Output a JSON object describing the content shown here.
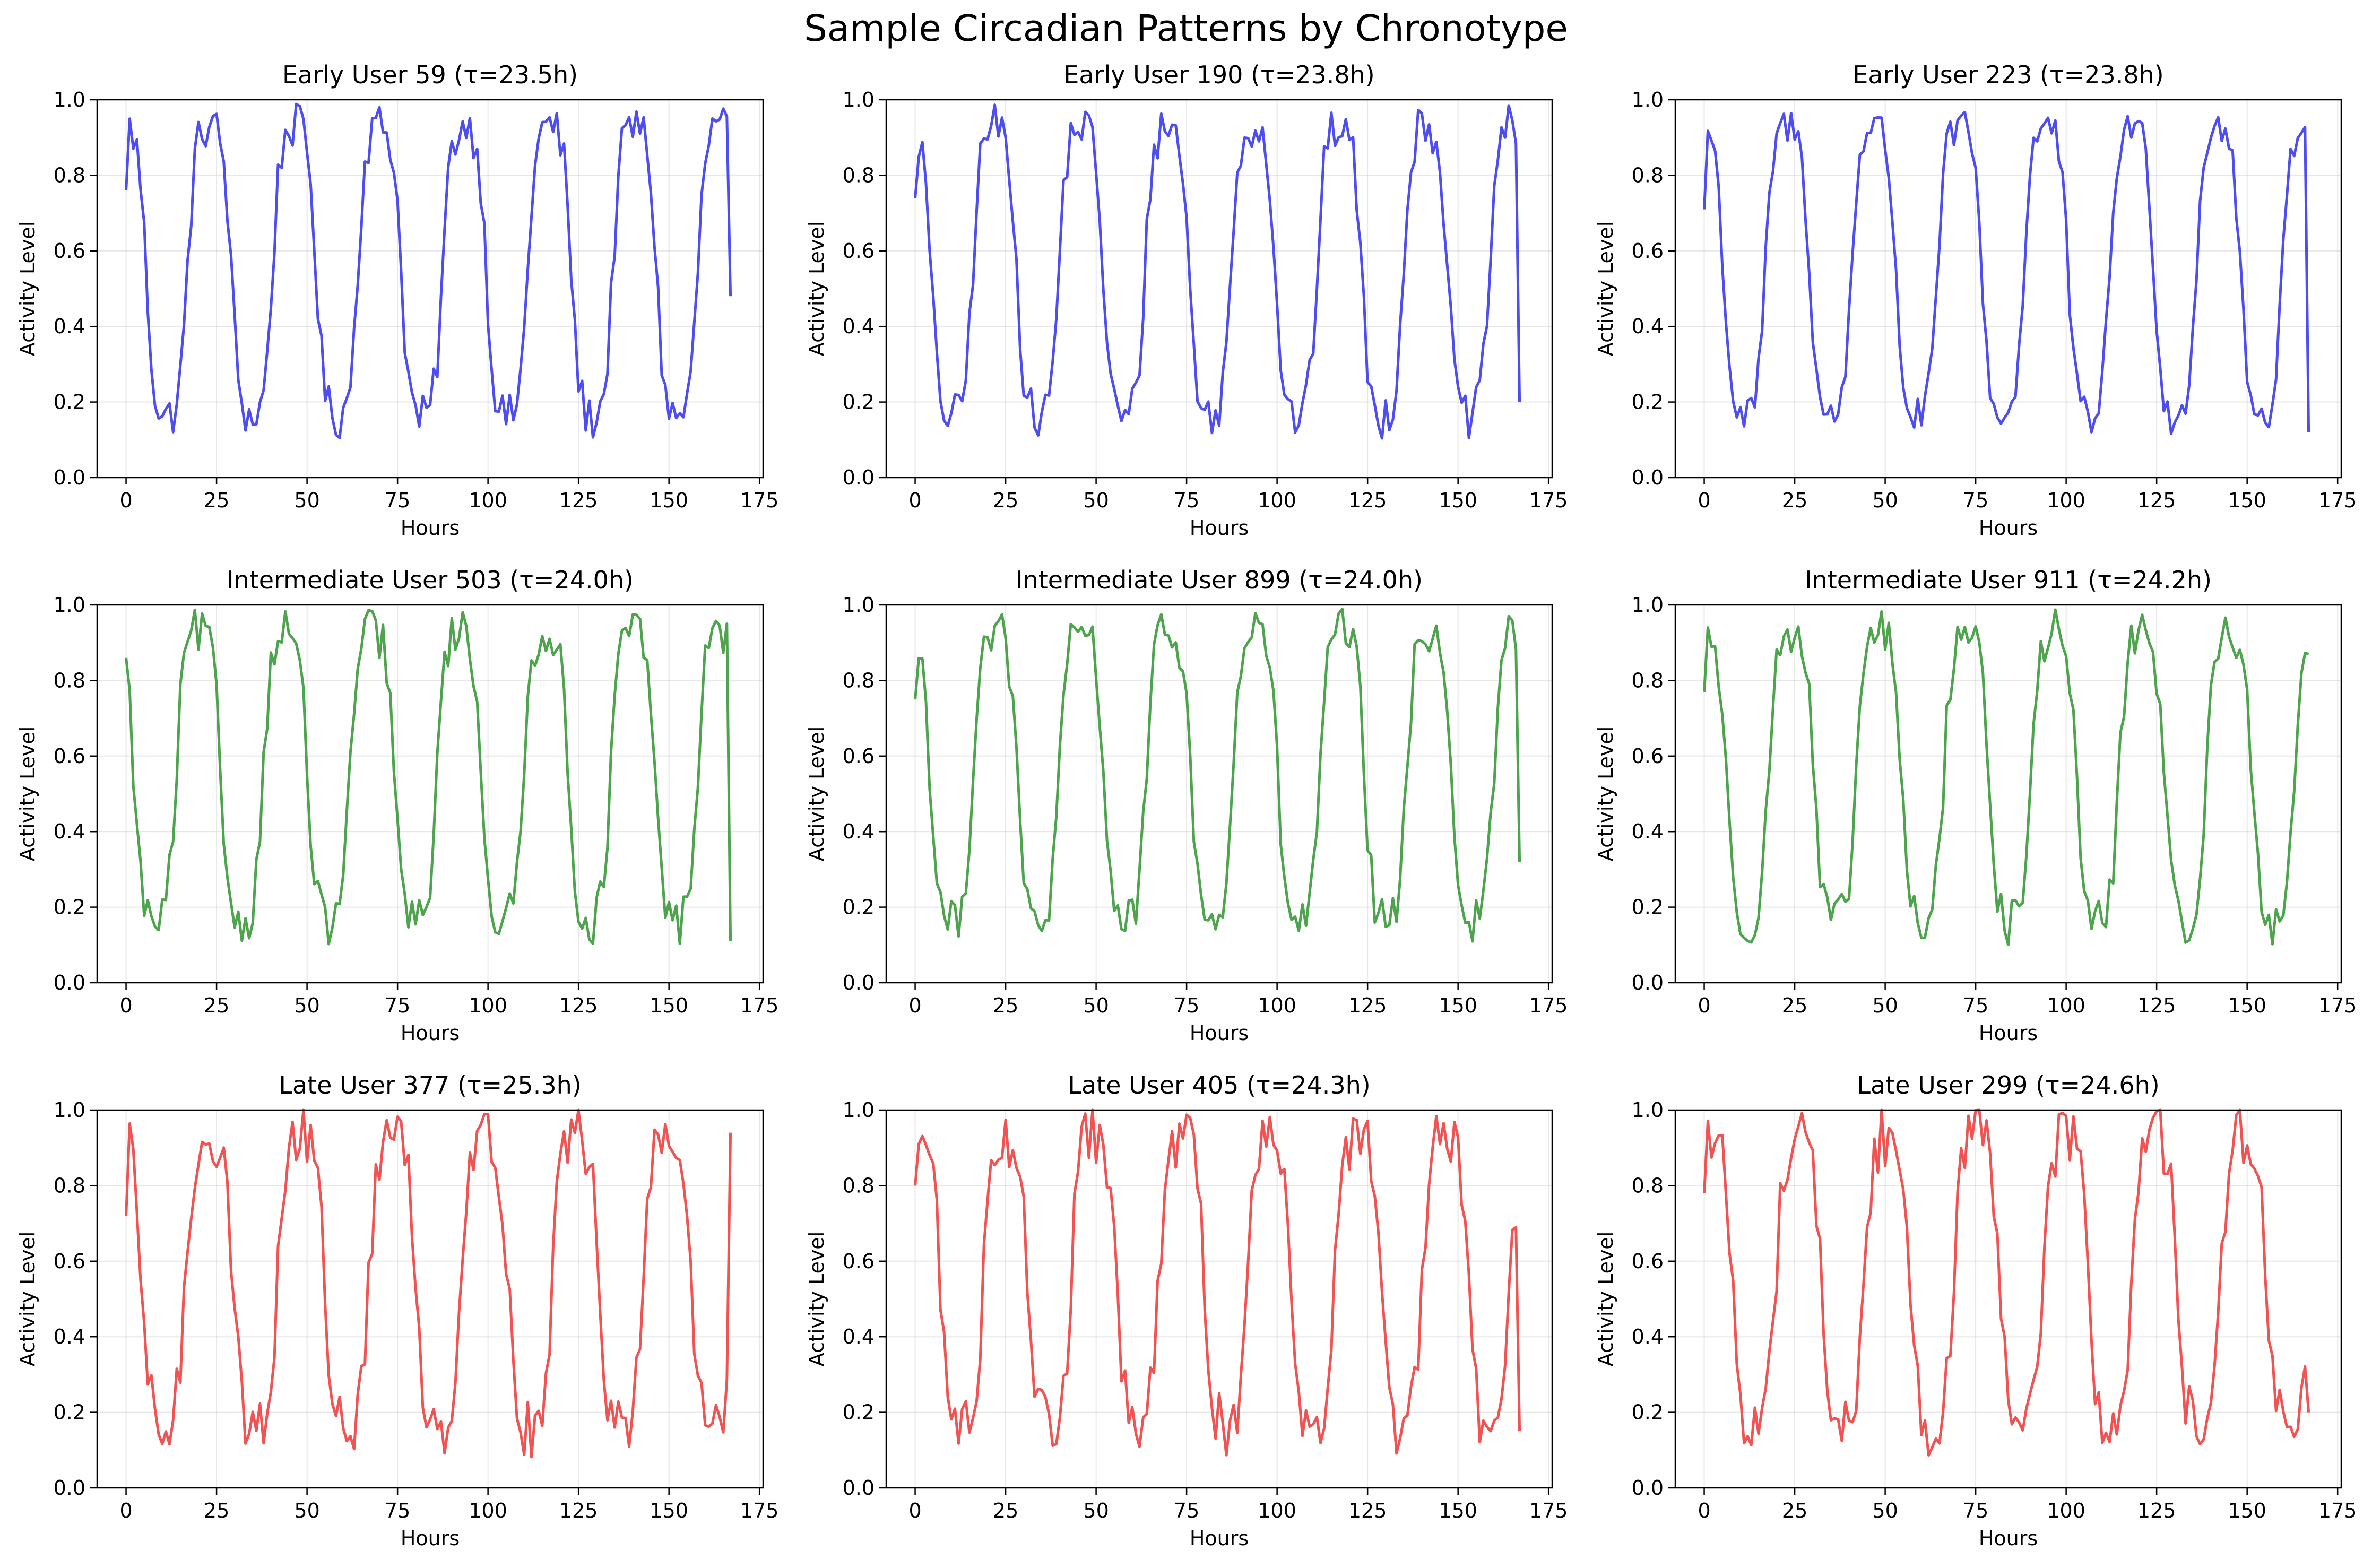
{
  "suptitle": "Sample Circadian Patterns by Chronotype",
  "chart_data": [
    {
      "type": "line",
      "title": "Early User 59 (τ=23.5h)",
      "xlabel": "Hours",
      "ylabel": "Activity Level",
      "xlim": [
        -8,
        176
      ],
      "ylim": [
        0,
        1
      ],
      "xticks": [
        0,
        25,
        50,
        75,
        100,
        125,
        150,
        175
      ],
      "yticks": [
        0.0,
        0.2,
        0.4,
        0.6,
        0.8,
        1.0
      ],
      "grid": true,
      "color": "#3a3af0",
      "tau": 23.5,
      "phase": 1,
      "noise": 0.06,
      "x_end": 167,
      "y0": 0.76,
      "y_end": 0.48
    },
    {
      "type": "line",
      "title": "Early User 190 (τ=23.8h)",
      "xlabel": "Hours",
      "ylabel": "Activity Level",
      "xlim": [
        -8,
        176
      ],
      "ylim": [
        0,
        1
      ],
      "xticks": [
        0,
        25,
        50,
        75,
        100,
        125,
        150,
        175
      ],
      "yticks": [
        0.0,
        0.2,
        0.4,
        0.6,
        0.8,
        1.0
      ],
      "grid": true,
      "color": "#3a3af0",
      "tau": 23.8,
      "phase": 0,
      "noise": 0.06,
      "x_end": 167,
      "y0": 0.74,
      "y_end": 0.2
    },
    {
      "type": "line",
      "title": "Early User 223 (τ=23.8h)",
      "xlabel": "Hours",
      "ylabel": "Activity Level",
      "xlim": [
        -8,
        176
      ],
      "ylim": [
        0,
        1
      ],
      "xticks": [
        0,
        25,
        50,
        75,
        100,
        125,
        150,
        175
      ],
      "yticks": [
        0.0,
        0.2,
        0.4,
        0.6,
        0.8,
        1.0
      ],
      "grid": true,
      "color": "#3a3af0",
      "tau": 23.8,
      "phase": 1,
      "noise": 0.05,
      "x_end": 167,
      "y0": 0.71,
      "y_end": 0.12
    },
    {
      "type": "line",
      "title": "Intermediate User 503 (τ=24.0h)",
      "xlabel": "Hours",
      "ylabel": "Activity Level",
      "xlim": [
        -8,
        176
      ],
      "ylim": [
        0,
        1
      ],
      "xticks": [
        0,
        25,
        50,
        75,
        100,
        125,
        150,
        175
      ],
      "yticks": [
        0.0,
        0.2,
        0.4,
        0.6,
        0.8,
        1.0
      ],
      "grid": true,
      "color": "#3a9a3a",
      "tau": 24.0,
      "phase": -2,
      "noise": 0.06,
      "x_end": 167,
      "y0": 0.86,
      "y_end": 0.11
    },
    {
      "type": "line",
      "title": "Intermediate User 899 (τ=24.0h)",
      "xlabel": "Hours",
      "ylabel": "Activity Level",
      "xlim": [
        -8,
        176
      ],
      "ylim": [
        0,
        1
      ],
      "xticks": [
        0,
        25,
        50,
        75,
        100,
        125,
        150,
        175
      ],
      "yticks": [
        0.0,
        0.2,
        0.4,
        0.6,
        0.8,
        1.0
      ],
      "grid": true,
      "color": "#3a9a3a",
      "tau": 24.0,
      "phase": 0,
      "noise": 0.06,
      "x_end": 167,
      "y0": 0.75,
      "y_end": 0.32
    },
    {
      "type": "line",
      "title": "Intermediate User 911 (τ=24.2h)",
      "xlabel": "Hours",
      "ylabel": "Activity Level",
      "xlim": [
        -8,
        176
      ],
      "ylim": [
        0,
        1
      ],
      "xticks": [
        0,
        25,
        50,
        75,
        100,
        125,
        150,
        175
      ],
      "yticks": [
        0.0,
        0.2,
        0.4,
        0.6,
        0.8,
        1.0
      ],
      "grid": true,
      "color": "#3a9a3a",
      "tau": 24.2,
      "phase": 2,
      "noise": 0.06,
      "x_end": 167,
      "y0": 0.77,
      "y_end": 0.87
    },
    {
      "type": "line",
      "title": "Late User 377 (τ=25.3h)",
      "xlabel": "Hours",
      "ylabel": "Activity Level",
      "xlim": [
        -8,
        176
      ],
      "ylim": [
        0,
        1
      ],
      "xticks": [
        0,
        25,
        50,
        75,
        100,
        125,
        150,
        175
      ],
      "yticks": [
        0.0,
        0.2,
        0.4,
        0.6,
        0.8,
        1.0
      ],
      "grid": true,
      "color": "#f04040",
      "tau": 25.3,
      "phase": 1,
      "noise": 0.08,
      "x_end": 167,
      "y0": 0.72,
      "y_end": 0.94
    },
    {
      "type": "line",
      "title": "Late User 405 (τ=24.3h)",
      "xlabel": "Hours",
      "ylabel": "Activity Level",
      "xlim": [
        -8,
        176
      ],
      "ylim": [
        0,
        1
      ],
      "xticks": [
        0,
        25,
        50,
        75,
        100,
        125,
        150,
        175
      ],
      "yticks": [
        0.0,
        0.2,
        0.4,
        0.6,
        0.8,
        1.0
      ],
      "grid": true,
      "color": "#f04040",
      "tau": 24.3,
      "phase": 3,
      "noise": 0.08,
      "x_end": 167,
      "y0": 0.8,
      "y_end": 0.15
    },
    {
      "type": "line",
      "title": "Late User 299 (τ=24.6h)",
      "xlabel": "Hours",
      "ylabel": "Activity Level",
      "xlim": [
        -8,
        176
      ],
      "ylim": [
        0,
        1
      ],
      "xticks": [
        0,
        25,
        50,
        75,
        100,
        125,
        150,
        175
      ],
      "yticks": [
        0.0,
        0.2,
        0.4,
        0.6,
        0.8,
        1.0
      ],
      "grid": true,
      "color": "#f04040",
      "tau": 24.6,
      "phase": 4,
      "noise": 0.08,
      "x_end": 167,
      "y0": 0.78,
      "y_end": 0.2
    }
  ]
}
